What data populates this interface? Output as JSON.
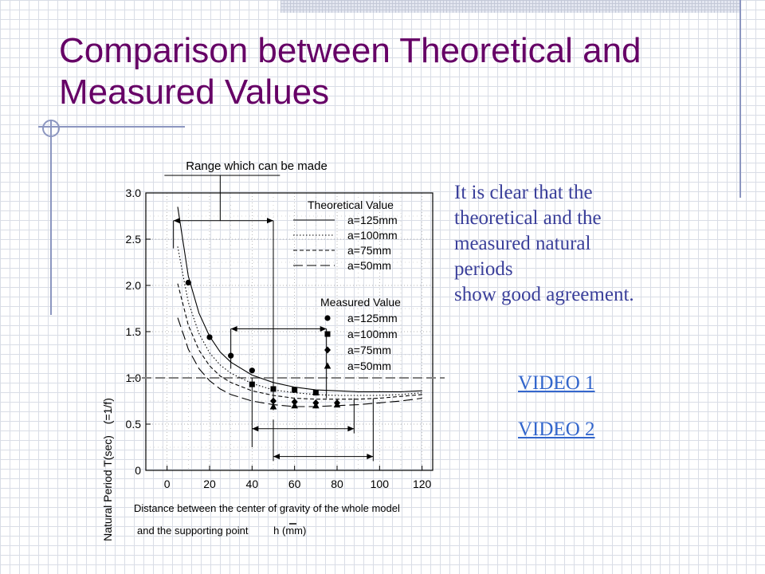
{
  "slide": {
    "title": "Comparison between Theoretical and Measured Values",
    "body_lines": [
      "It is clear that the",
      "theoretical and the",
      "measured natural",
      "periods",
      "show good agreement."
    ],
    "links": [
      "VIDEO 1",
      "VIDEO 2"
    ],
    "colors": {
      "title": "#660066",
      "body": "#3a3f9a",
      "link": "#3366cc",
      "accent": "#8c96c0"
    }
  },
  "chart_data": {
    "type": "line",
    "annotation_top": "Range which can be made",
    "ylabel_main": "Natural Period T(sec)",
    "ylabel_unit": "(=1/f)",
    "xlabel_line1": "Distance between the center of gravity of the whole model",
    "xlabel_line2_prefix": "and the supporting point",
    "xlabel_symbol": "h",
    "xlabel_unit": "(mm)",
    "xlim": [
      -10,
      125
    ],
    "ylim": [
      0,
      3.0
    ],
    "x_ticks": [
      "0",
      "20",
      "40",
      "60",
      "80",
      "100",
      "120"
    ],
    "y_ticks": [
      "0",
      "0.5",
      "1.0",
      "1.5",
      "2.0",
      "2.5",
      "3.0"
    ],
    "reference_line_y": 1.0,
    "theoretical": {
      "legend_title": "Theoretical Value",
      "series": [
        {
          "name": "a=125mm",
          "style": "solid",
          "x": [
            5,
            8,
            10,
            15,
            20,
            25,
            30,
            40,
            50,
            60,
            70,
            80,
            90,
            100,
            110,
            120
          ],
          "y": [
            2.85,
            2.4,
            2.1,
            1.7,
            1.45,
            1.28,
            1.17,
            1.03,
            0.95,
            0.9,
            0.87,
            0.86,
            0.85,
            0.85,
            0.85,
            0.86
          ]
        },
        {
          "name": "a=100mm",
          "style": "dotted",
          "x": [
            5,
            8,
            10,
            15,
            20,
            25,
            30,
            40,
            50,
            60,
            70,
            80,
            90,
            100,
            110,
            120
          ],
          "y": [
            2.42,
            2.05,
            1.82,
            1.48,
            1.27,
            1.14,
            1.05,
            0.94,
            0.87,
            0.84,
            0.82,
            0.81,
            0.81,
            0.81,
            0.82,
            0.84
          ]
        },
        {
          "name": "a=75mm",
          "style": "dashed",
          "x": [
            5,
            8,
            10,
            15,
            20,
            25,
            30,
            40,
            50,
            60,
            70,
            80,
            90,
            100,
            110,
            120
          ],
          "y": [
            2.02,
            1.75,
            1.57,
            1.3,
            1.13,
            1.02,
            0.95,
            0.86,
            0.81,
            0.78,
            0.77,
            0.77,
            0.77,
            0.78,
            0.8,
            0.82
          ]
        },
        {
          "name": "a=50mm",
          "style": "longdash",
          "x": [
            5,
            8,
            10,
            15,
            20,
            25,
            30,
            40,
            50,
            60,
            70,
            80,
            90,
            100,
            110,
            120
          ],
          "y": [
            1.65,
            1.45,
            1.31,
            1.1,
            0.97,
            0.88,
            0.82,
            0.75,
            0.71,
            0.69,
            0.69,
            0.7,
            0.71,
            0.73,
            0.75,
            0.78
          ]
        }
      ]
    },
    "measured": {
      "legend_title": "Measured Value",
      "series": [
        {
          "name": "a=125mm",
          "marker": "circle",
          "x": [
            10,
            20,
            30,
            40
          ],
          "y": [
            2.03,
            1.44,
            1.24,
            1.08
          ]
        },
        {
          "name": "a=100mm",
          "marker": "square",
          "x": [
            40,
            50,
            60,
            70
          ],
          "y": [
            0.93,
            0.88,
            0.87,
            0.84
          ]
        },
        {
          "name": "a=75mm",
          "marker": "diamond",
          "x": [
            50,
            60,
            70,
            80
          ],
          "y": [
            0.75,
            0.74,
            0.73,
            0.73
          ]
        },
        {
          "name": "a=50mm",
          "marker": "triangle",
          "x": [
            50,
            60,
            70,
            80
          ],
          "y": [
            0.69,
            0.7,
            0.7,
            0.71
          ]
        }
      ]
    },
    "range_brackets": [
      {
        "x": [
          3,
          50
        ],
        "y": 2.7
      },
      {
        "x": [
          30,
          75
        ],
        "y": 1.53
      },
      {
        "x": [
          40,
          88
        ],
        "y": 0.45
      },
      {
        "x": [
          50,
          97
        ],
        "y": 0.15
      }
    ],
    "bracket_verticals": [
      {
        "x": 3,
        "y": [
          2.4,
          2.7
        ]
      },
      {
        "x": 50,
        "y": [
          0.65,
          2.7
        ]
      },
      {
        "x": 30,
        "y": [
          1.1,
          1.53
        ]
      },
      {
        "x": 75,
        "y": [
          0.78,
          1.53
        ]
      },
      {
        "x": 40,
        "y": [
          0.25,
          1.0
        ]
      },
      {
        "x": 88,
        "y": [
          0.4,
          0.78
        ]
      },
      {
        "x": 50,
        "y": [
          0.1,
          0.55
        ]
      },
      {
        "x": 97,
        "y": [
          0.1,
          0.78
        ]
      }
    ],
    "annotation_pointer_x": 25
  }
}
